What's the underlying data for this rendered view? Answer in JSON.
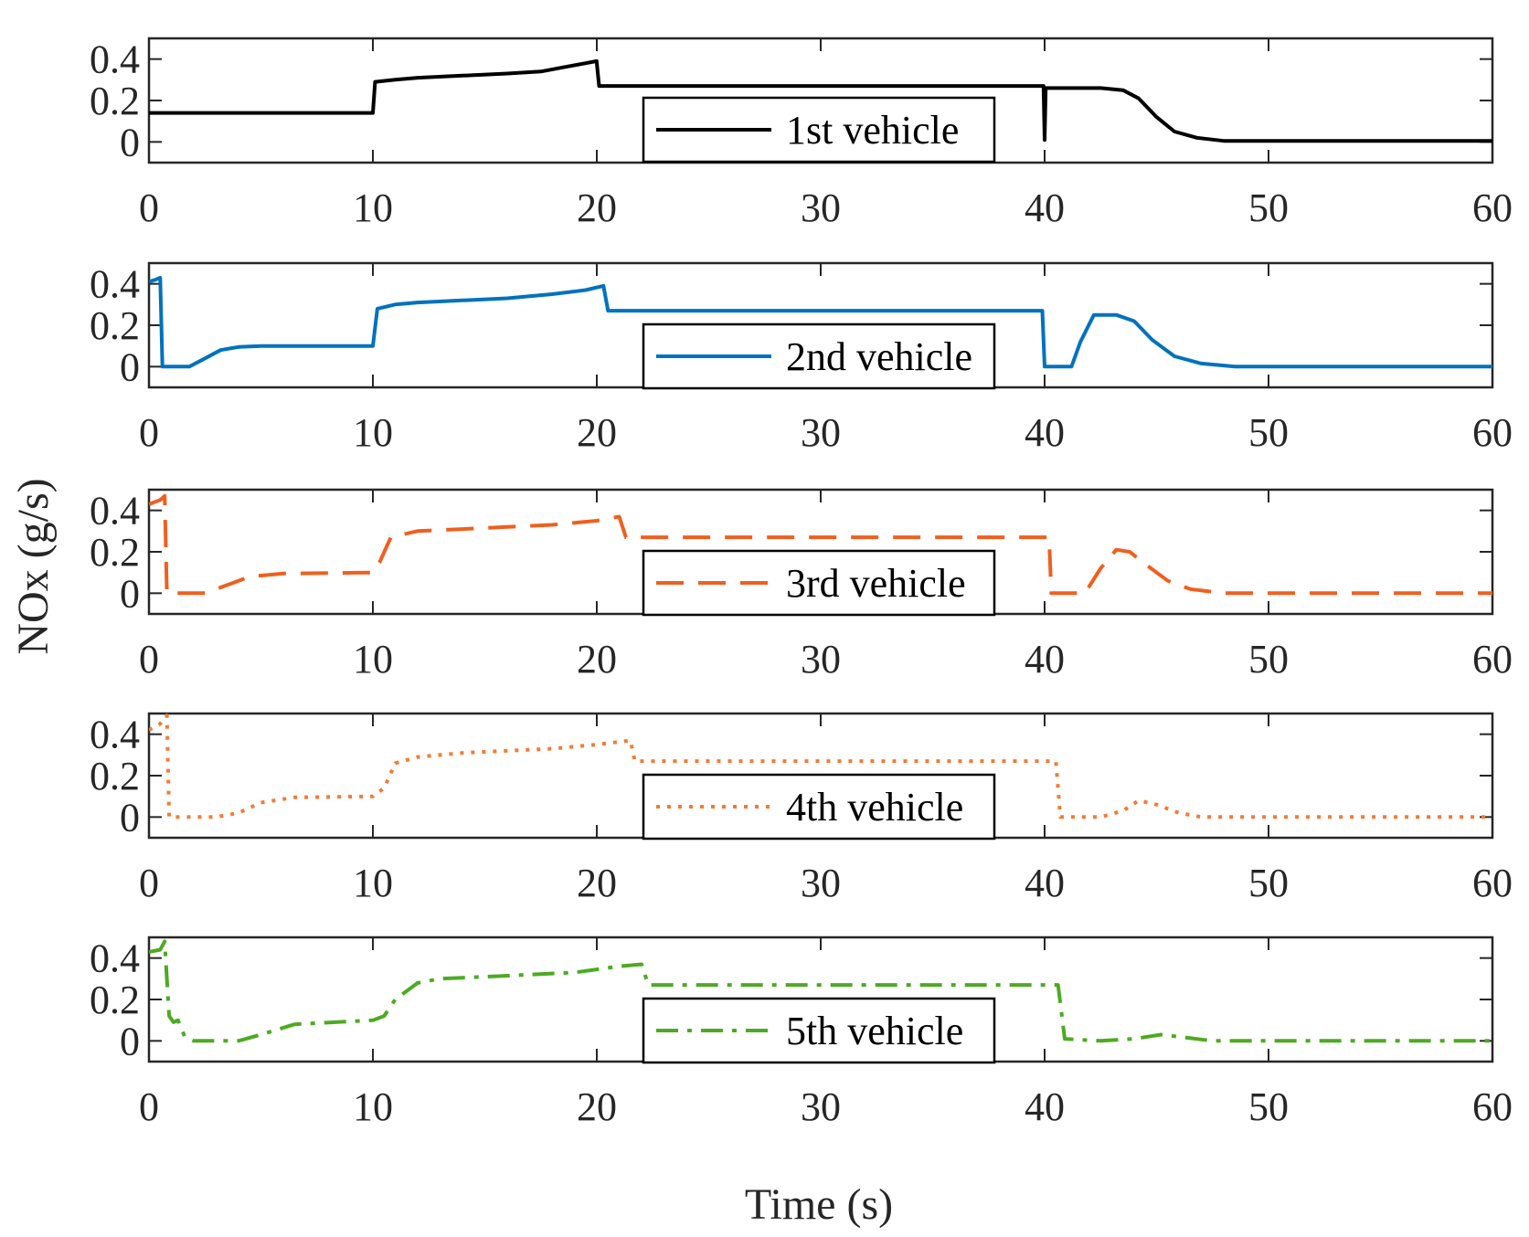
{
  "chart_data": {
    "type": "line",
    "layout": "stacked subplots",
    "ylabel": "NOx (g/s)",
    "xlabel": "Time (s)",
    "xlim": [
      0,
      60
    ],
    "ylim": [
      -0.1,
      0.5
    ],
    "xticks": [
      0,
      10,
      20,
      30,
      40,
      50,
      60
    ],
    "yticks": [
      0,
      0.2,
      0.4
    ],
    "grid": false,
    "legend_placement": "bottom-center",
    "subplots": [
      {
        "legend": "1st vehicle",
        "color": "#000000",
        "line_style": "solid",
        "x": [
          0,
          10,
          10.1,
          11,
          12,
          14,
          16,
          17.5,
          18.5,
          19.5,
          19.99,
          20.1,
          30,
          39.95,
          40.0,
          40.05,
          40.2,
          42.5,
          43.5,
          44.2,
          45,
          45.8,
          46.8,
          48,
          60
        ],
        "y": [
          0.14,
          0.14,
          0.29,
          0.3,
          0.31,
          0.32,
          0.33,
          0.34,
          0.36,
          0.38,
          0.39,
          0.27,
          0.27,
          0.27,
          0.01,
          0.26,
          0.26,
          0.26,
          0.25,
          0.21,
          0.12,
          0.05,
          0.02,
          0.005,
          0.005
        ]
      },
      {
        "legend": "2nd vehicle",
        "color": "#0072BD",
        "line_style": "solid",
        "x": [
          0,
          0.3,
          0.5,
          0.6,
          1.0,
          1.8,
          2.5,
          3.2,
          4,
          5,
          10,
          10.2,
          11,
          12,
          14,
          16,
          18,
          19.5,
          20.3,
          20.5,
          30,
          39.9,
          40.0,
          41.2,
          41.6,
          42.2,
          43.2,
          44,
          44.8,
          45.8,
          47,
          48.5,
          60
        ],
        "y": [
          0.41,
          0.42,
          0.43,
          0.0,
          0.0,
          0.0,
          0.04,
          0.08,
          0.095,
          0.1,
          0.1,
          0.28,
          0.3,
          0.31,
          0.32,
          0.33,
          0.35,
          0.37,
          0.39,
          0.27,
          0.27,
          0.27,
          0.0,
          0.0,
          0.12,
          0.25,
          0.25,
          0.22,
          0.13,
          0.05,
          0.015,
          0.0,
          0.0
        ],
        "legend_value": "2nd vehicle"
      },
      {
        "legend": "3rd vehicle",
        "color": "#F05F1E",
        "line_style": "dashed",
        "x": [
          0,
          0.5,
          0.7,
          0.8,
          1.5,
          2.5,
          3.5,
          4.5,
          6,
          10,
          10.3,
          10.8,
          12,
          14,
          16,
          18,
          20,
          21,
          21.3,
          30,
          40.2,
          40.3,
          41.8,
          42.5,
          43.2,
          43.8,
          44.5,
          45.5,
          46.5,
          48,
          60
        ],
        "y": [
          0.43,
          0.45,
          0.47,
          0.0,
          0.0,
          0.0,
          0.04,
          0.08,
          0.095,
          0.1,
          0.15,
          0.27,
          0.3,
          0.31,
          0.32,
          0.33,
          0.35,
          0.37,
          0.27,
          0.27,
          0.27,
          0.0,
          0.0,
          0.12,
          0.21,
          0.2,
          0.14,
          0.06,
          0.02,
          0.0,
          0.0
        ],
        "legend_value": "3rd vehicle"
      },
      {
        "legend": "4th vehicle",
        "color": "#F47A35",
        "line_style": "dotted",
        "x": [
          0,
          0.5,
          0.8,
          0.9,
          1.5,
          3,
          4,
          5,
          6.5,
          10,
          10.5,
          11,
          12,
          14,
          16,
          18,
          20,
          21.5,
          21.7,
          30,
          40.5,
          40.7,
          42.5,
          43.5,
          44.2,
          45,
          46,
          47,
          60
        ],
        "y": [
          0.42,
          0.45,
          0.49,
          0.0,
          0.0,
          0.0,
          0.02,
          0.07,
          0.095,
          0.1,
          0.14,
          0.26,
          0.29,
          0.31,
          0.32,
          0.33,
          0.35,
          0.37,
          0.27,
          0.27,
          0.27,
          0.0,
          0.0,
          0.03,
          0.08,
          0.06,
          0.02,
          0.0,
          0.0
        ],
        "legend_value": "4th vehicle"
      },
      {
        "legend": "5th vehicle",
        "color": "#4DAA22",
        "line_style": "dash-dot",
        "x": [
          0,
          0.5,
          0.7,
          0.8,
          0.9,
          1.1,
          1.3,
          1.6,
          2,
          3,
          4,
          5,
          6.5,
          10,
          10.5,
          11,
          12,
          13,
          15,
          17,
          19,
          21,
          22,
          22.3,
          30,
          40.6,
          40.9,
          42.5,
          44,
          45.2,
          46,
          47.5,
          60
        ],
        "y": [
          0.43,
          0.44,
          0.48,
          0.3,
          0.12,
          0.09,
          0.1,
          0.02,
          0.0,
          0.0,
          0.0,
          0.03,
          0.08,
          0.1,
          0.12,
          0.2,
          0.28,
          0.3,
          0.31,
          0.32,
          0.33,
          0.36,
          0.37,
          0.27,
          0.27,
          0.27,
          0.01,
          0.0,
          0.01,
          0.03,
          0.02,
          0.0,
          0.0
        ],
        "legend_value": "5th vehicle"
      }
    ]
  }
}
